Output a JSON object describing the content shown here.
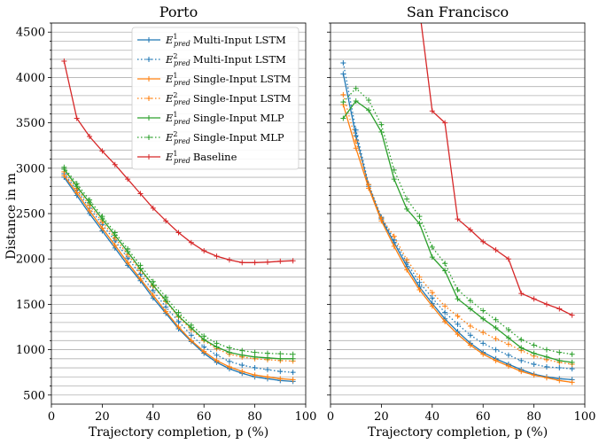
{
  "chart_data": [
    {
      "type": "line",
      "title": "Porto",
      "xlabel": "Trajectory completion, p (%)",
      "ylabel": "Distance in m",
      "xlim": [
        0,
        100
      ],
      "ylim": [
        400,
        4600
      ],
      "xticks": [
        0,
        20,
        40,
        60,
        80,
        100
      ],
      "yticks": [
        500,
        1000,
        1500,
        2000,
        2500,
        3000,
        3500,
        4000,
        4500
      ],
      "grid": "horizontal",
      "legend": "top-right",
      "series": [
        {
          "name": "E¹pred Multi-Input LSTM",
          "color": "#1f77b4",
          "style": "solid",
          "x": [
            5,
            10,
            15,
            20,
            25,
            30,
            35,
            40,
            45,
            50,
            55,
            60,
            65,
            70,
            75,
            80,
            85,
            90,
            95
          ],
          "y": [
            2900,
            2700,
            2500,
            2310,
            2120,
            1930,
            1760,
            1570,
            1400,
            1230,
            1090,
            960,
            860,
            790,
            740,
            700,
            680,
            660,
            650
          ]
        },
        {
          "name": "E²pred Multi-Input LSTM",
          "color": "#1f77b4",
          "style": "dotted",
          "x": [
            5,
            10,
            15,
            20,
            25,
            30,
            35,
            40,
            45,
            50,
            55,
            60,
            65,
            70,
            75,
            80,
            85,
            90,
            95
          ],
          "y": [
            2940,
            2760,
            2560,
            2380,
            2200,
            2010,
            1830,
            1650,
            1470,
            1310,
            1160,
            1030,
            940,
            870,
            830,
            800,
            780,
            760,
            750
          ]
        },
        {
          "name": "E¹pred Single-Input LSTM",
          "color": "#ff7f0e",
          "style": "solid",
          "x": [
            5,
            10,
            15,
            20,
            25,
            30,
            35,
            40,
            45,
            50,
            55,
            60,
            65,
            70,
            75,
            80,
            85,
            90,
            95
          ],
          "y": [
            2920,
            2730,
            2530,
            2340,
            2150,
            1960,
            1780,
            1600,
            1420,
            1250,
            1100,
            980,
            880,
            810,
            760,
            720,
            700,
            680,
            670
          ]
        },
        {
          "name": "E²pred Single-Input LSTM",
          "color": "#ff7f0e",
          "style": "dotted",
          "x": [
            5,
            10,
            15,
            20,
            25,
            30,
            35,
            40,
            45,
            50,
            55,
            60,
            65,
            70,
            75,
            80,
            85,
            90,
            95
          ],
          "y": [
            2960,
            2780,
            2590,
            2410,
            2230,
            2050,
            1870,
            1700,
            1530,
            1360,
            1220,
            1100,
            1010,
            950,
            920,
            900,
            890,
            880,
            875
          ]
        },
        {
          "name": "E¹pred Single-Input MLP",
          "color": "#2ca02c",
          "style": "solid",
          "x": [
            5,
            10,
            15,
            20,
            25,
            30,
            35,
            40,
            45,
            50,
            55,
            60,
            65,
            70,
            75,
            80,
            85,
            90,
            95
          ],
          "y": [
            2990,
            2800,
            2620,
            2440,
            2260,
            2080,
            1890,
            1710,
            1540,
            1370,
            1240,
            1110,
            1030,
            970,
            940,
            920,
            910,
            900,
            900
          ]
        },
        {
          "name": "E²pred Single-Input MLP",
          "color": "#2ca02c",
          "style": "dotted",
          "x": [
            5,
            10,
            15,
            20,
            25,
            30,
            35,
            40,
            45,
            50,
            55,
            60,
            65,
            70,
            75,
            80,
            85,
            90,
            95
          ],
          "y": [
            3010,
            2830,
            2650,
            2470,
            2290,
            2110,
            1930,
            1750,
            1580,
            1410,
            1270,
            1150,
            1070,
            1020,
            990,
            970,
            960,
            955,
            950
          ]
        },
        {
          "name": "E¹pred Baseline",
          "color": "#d62728",
          "style": "solid",
          "x": [
            5,
            10,
            15,
            20,
            25,
            30,
            35,
            40,
            45,
            50,
            55,
            60,
            65,
            70,
            75,
            80,
            85,
            90,
            95
          ],
          "y": [
            4180,
            3550,
            3350,
            3190,
            3040,
            2880,
            2720,
            2560,
            2420,
            2290,
            2180,
            2090,
            2030,
            1990,
            1960,
            1960,
            1965,
            1975,
            1980
          ]
        }
      ]
    },
    {
      "type": "line",
      "title": "San Francisco",
      "xlabel": "Trajectory completion, p (%)",
      "xlim": [
        0,
        100
      ],
      "ylim": [
        400,
        4600
      ],
      "xticks": [
        0,
        20,
        40,
        60,
        80,
        100
      ],
      "grid": "horizontal",
      "series": [
        {
          "name": "E¹pred Multi-Input LSTM",
          "color": "#1f77b4",
          "style": "solid",
          "x": [
            5,
            10,
            15,
            20,
            25,
            30,
            35,
            40,
            45,
            50,
            55,
            60,
            65,
            70,
            75,
            80,
            85,
            90,
            95
          ],
          "y": [
            4040,
            3360,
            2800,
            2440,
            2180,
            1920,
            1690,
            1510,
            1340,
            1200,
            1070,
            970,
            900,
            840,
            780,
            730,
            700,
            680,
            670
          ]
        },
        {
          "name": "E²pred Multi-Input LSTM",
          "color": "#1f77b4",
          "style": "dotted",
          "x": [
            5,
            10,
            15,
            20,
            25,
            30,
            35,
            40,
            45,
            50,
            55,
            60,
            65,
            70,
            75,
            80,
            85,
            90,
            95
          ],
          "y": [
            4160,
            3420,
            2820,
            2460,
            2210,
            1960,
            1740,
            1570,
            1410,
            1280,
            1160,
            1070,
            1000,
            940,
            880,
            840,
            810,
            800,
            790
          ]
        },
        {
          "name": "E¹pred Single-Input LSTM",
          "color": "#ff7f0e",
          "style": "solid",
          "x": [
            5,
            10,
            15,
            20,
            25,
            30,
            35,
            40,
            45,
            50,
            55,
            60,
            65,
            70,
            75,
            80,
            85,
            90,
            95
          ],
          "y": [
            3700,
            3220,
            2780,
            2420,
            2140,
            1880,
            1660,
            1480,
            1310,
            1170,
            1050,
            950,
            880,
            820,
            760,
            720,
            690,
            660,
            640
          ]
        },
        {
          "name": "E²pred Single-Input LSTM",
          "color": "#ff7f0e",
          "style": "dotted",
          "x": [
            5,
            10,
            15,
            20,
            25,
            30,
            35,
            40,
            45,
            50,
            55,
            60,
            65,
            70,
            75,
            80,
            85,
            90,
            95
          ],
          "y": [
            3810,
            3300,
            2820,
            2450,
            2250,
            1990,
            1800,
            1630,
            1480,
            1370,
            1260,
            1190,
            1120,
            1060,
            990,
            930,
            890,
            860,
            840
          ]
        },
        {
          "name": "E¹pred Single-Input MLP",
          "color": "#2ca02c",
          "style": "solid",
          "x": [
            5,
            10,
            15,
            20,
            25,
            30,
            35,
            40,
            45,
            50,
            55,
            60,
            65,
            70,
            75,
            80,
            85,
            90,
            95
          ],
          "y": [
            3550,
            3740,
            3640,
            3400,
            2880,
            2550,
            2390,
            2020,
            1870,
            1560,
            1450,
            1340,
            1240,
            1130,
            1020,
            960,
            920,
            880,
            860
          ]
        },
        {
          "name": "E²pred Single-Input MLP",
          "color": "#2ca02c",
          "style": "dotted",
          "x": [
            5,
            10,
            15,
            20,
            25,
            30,
            35,
            40,
            45,
            50,
            55,
            60,
            65,
            70,
            75,
            80,
            85,
            90,
            95
          ],
          "y": [
            3730,
            3880,
            3750,
            3480,
            2980,
            2660,
            2470,
            2130,
            1950,
            1660,
            1540,
            1430,
            1330,
            1220,
            1110,
            1050,
            1000,
            970,
            950
          ]
        },
        {
          "name": "E¹pred Baseline",
          "color": "#d62728",
          "style": "solid",
          "x": [
            35,
            40,
            45,
            50,
            55,
            60,
            65,
            70,
            75,
            80,
            85,
            90,
            95
          ],
          "y": [
            4750,
            3630,
            3500,
            2440,
            2320,
            2190,
            2100,
            2000,
            1620,
            1560,
            1500,
            1450,
            1380
          ]
        }
      ]
    }
  ],
  "legend": {
    "entries": [
      {
        "sup": "1",
        "label": "Multi-Input LSTM",
        "color": "#1f77b4",
        "style": "solid"
      },
      {
        "sup": "2",
        "label": "Multi-Input LSTM",
        "color": "#1f77b4",
        "style": "dotted"
      },
      {
        "sup": "1",
        "label": "Single-Input LSTM",
        "color": "#ff7f0e",
        "style": "solid"
      },
      {
        "sup": "2",
        "label": "Single-Input LSTM",
        "color": "#ff7f0e",
        "style": "dotted"
      },
      {
        "sup": "1",
        "label": "Single-Input MLP",
        "color": "#2ca02c",
        "style": "solid"
      },
      {
        "sup": "2",
        "label": "Single-Input MLP",
        "color": "#2ca02c",
        "style": "dotted"
      },
      {
        "sup": "1",
        "label": "Baseline",
        "color": "#d62728",
        "style": "solid"
      }
    ]
  }
}
